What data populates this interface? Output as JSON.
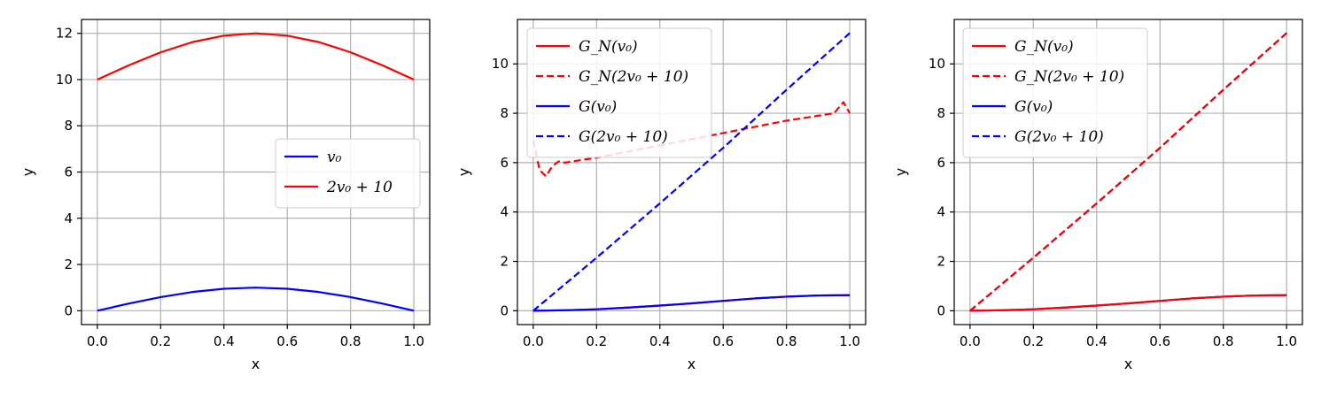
{
  "chart_data": [
    {
      "type": "line",
      "xlabel": "x",
      "ylabel": "y",
      "xlim": [
        -0.05,
        1.05
      ],
      "ylim": [
        -0.6,
        12.6
      ],
      "xticks": [
        0.0,
        0.2,
        0.4,
        0.6,
        0.8,
        1.0
      ],
      "xtick_labels": [
        "0.0",
        "0.2",
        "0.4",
        "0.6",
        "0.8",
        "1.0"
      ],
      "yticks": [
        0,
        2,
        4,
        6,
        8,
        10,
        12
      ],
      "ytick_labels": [
        "0",
        "2",
        "4",
        "6",
        "8",
        "10",
        "12"
      ],
      "grid": true,
      "legend_position": "center-right",
      "series": [
        {
          "name": "v₀",
          "color": "#0000ff",
          "dash": "solid",
          "x": [
            0.0,
            0.1,
            0.2,
            0.3,
            0.4,
            0.5,
            0.6,
            0.7,
            0.8,
            0.9,
            1.0
          ],
          "y": [
            0.0,
            0.31,
            0.59,
            0.81,
            0.95,
            1.0,
            0.95,
            0.81,
            0.59,
            0.31,
            0.0
          ]
        },
        {
          "name": "2v₀ + 10",
          "color": "#ff0000",
          "dash": "solid",
          "x": [
            0.0,
            0.1,
            0.2,
            0.3,
            0.4,
            0.5,
            0.6,
            0.7,
            0.8,
            0.9,
            1.0
          ],
          "y": [
            10.0,
            10.62,
            11.18,
            11.62,
            11.9,
            12.0,
            11.9,
            11.62,
            11.18,
            10.62,
            10.0
          ]
        }
      ]
    },
    {
      "type": "line",
      "xlabel": "x",
      "ylabel": "y",
      "xlim": [
        -0.05,
        1.05
      ],
      "ylim": [
        -0.56,
        11.8
      ],
      "xticks": [
        0.0,
        0.2,
        0.4,
        0.6,
        0.8,
        1.0
      ],
      "xtick_labels": [
        "0.0",
        "0.2",
        "0.4",
        "0.6",
        "0.8",
        "1.0"
      ],
      "yticks": [
        0,
        2,
        4,
        6,
        8,
        10
      ],
      "ytick_labels": [
        "0",
        "2",
        "4",
        "6",
        "8",
        "10"
      ],
      "grid": true,
      "legend_position": "upper-left",
      "series": [
        {
          "name": "G_N(v₀)",
          "color": "#ff0000",
          "dash": "solid",
          "x": [
            0.0,
            0.1,
            0.2,
            0.3,
            0.4,
            0.5,
            0.6,
            0.7,
            0.8,
            0.9,
            1.0
          ],
          "y": [
            0.0,
            0.02,
            0.06,
            0.13,
            0.21,
            0.3,
            0.4,
            0.5,
            0.57,
            0.62,
            0.63
          ]
        },
        {
          "name": "G_N(2v₀ + 10)",
          "color": "#ff0000",
          "dash": "dashed",
          "x": [
            0.0,
            0.02,
            0.04,
            0.06,
            0.08,
            0.1,
            0.15,
            0.2,
            0.3,
            0.4,
            0.5,
            0.6,
            0.7,
            0.8,
            0.9,
            0.95,
            0.98,
            1.0
          ],
          "y": [
            6.9,
            5.7,
            5.45,
            5.85,
            6.05,
            6.0,
            6.1,
            6.2,
            6.45,
            6.7,
            6.95,
            7.2,
            7.45,
            7.7,
            7.9,
            8.0,
            8.45,
            8.0
          ]
        },
        {
          "name": "G(v₀)",
          "color": "#0000ff",
          "dash": "solid",
          "x": [
            0.0,
            0.1,
            0.2,
            0.3,
            0.4,
            0.5,
            0.6,
            0.7,
            0.8,
            0.9,
            1.0
          ],
          "y": [
            0.0,
            0.02,
            0.06,
            0.13,
            0.21,
            0.3,
            0.4,
            0.5,
            0.57,
            0.62,
            0.63
          ]
        },
        {
          "name": "G(2v₀ + 10)",
          "color": "#0000ff",
          "dash": "dashed",
          "x": [
            0.0,
            0.2,
            0.4,
            0.6,
            0.8,
            1.0
          ],
          "y": [
            0.0,
            2.15,
            4.35,
            6.6,
            8.95,
            11.25
          ]
        }
      ]
    },
    {
      "type": "line",
      "xlabel": "x",
      "ylabel": "y",
      "xlim": [
        -0.05,
        1.05
      ],
      "ylim": [
        -0.56,
        11.8
      ],
      "xticks": [
        0.0,
        0.2,
        0.4,
        0.6,
        0.8,
        1.0
      ],
      "xtick_labels": [
        "0.0",
        "0.2",
        "0.4",
        "0.6",
        "0.8",
        "1.0"
      ],
      "yticks": [
        0,
        2,
        4,
        6,
        8,
        10
      ],
      "ytick_labels": [
        "0",
        "2",
        "4",
        "6",
        "8",
        "10"
      ],
      "grid": true,
      "legend_position": "upper-left",
      "series": [
        {
          "name": "G(v₀)",
          "color": "#0000ff",
          "dash": "solid",
          "x": [
            0.0,
            0.1,
            0.2,
            0.3,
            0.4,
            0.5,
            0.6,
            0.7,
            0.8,
            0.9,
            1.0
          ],
          "y": [
            0.0,
            0.02,
            0.06,
            0.13,
            0.21,
            0.3,
            0.4,
            0.5,
            0.57,
            0.62,
            0.63
          ]
        },
        {
          "name": "G(2v₀ + 10)",
          "color": "#0000ff",
          "dash": "dashed",
          "x": [
            0.0,
            0.2,
            0.4,
            0.6,
            0.8,
            1.0
          ],
          "y": [
            0.0,
            2.15,
            4.35,
            6.6,
            8.95,
            11.25
          ]
        },
        {
          "name": "G_N(v₀)",
          "color": "#ff0000",
          "dash": "solid",
          "x": [
            0.0,
            0.1,
            0.2,
            0.3,
            0.4,
            0.5,
            0.6,
            0.7,
            0.8,
            0.9,
            1.0
          ],
          "y": [
            0.0,
            0.02,
            0.06,
            0.13,
            0.21,
            0.3,
            0.4,
            0.5,
            0.57,
            0.62,
            0.63
          ]
        },
        {
          "name": "G_N(2v₀ + 10)",
          "color": "#ff0000",
          "dash": "dashed",
          "x": [
            0.0,
            0.2,
            0.4,
            0.6,
            0.8,
            1.0
          ],
          "y": [
            0.0,
            2.15,
            4.35,
            6.6,
            8.95,
            11.25
          ]
        }
      ],
      "legend_order": [
        "G_N(v₀)",
        "G_N(2v₀ + 10)",
        "G(v₀)",
        "G(2v₀ + 10)"
      ]
    }
  ]
}
